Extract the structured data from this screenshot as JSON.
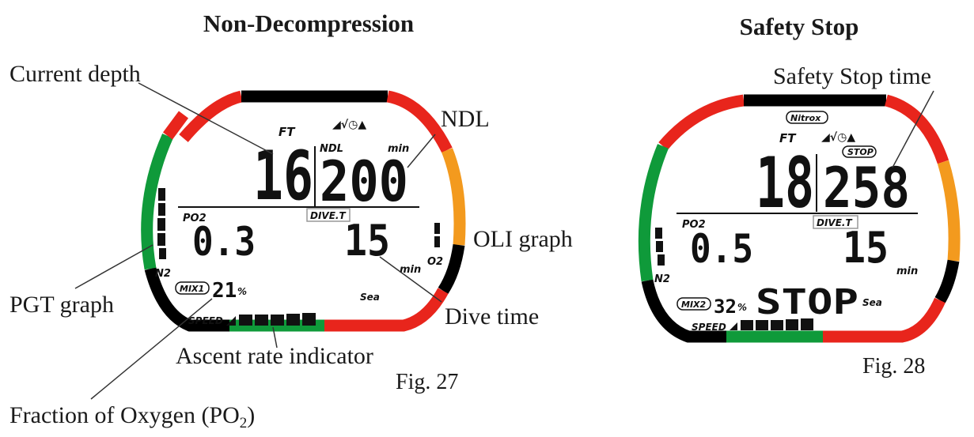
{
  "colors": {
    "red": "#e8251c",
    "green": "#0f9a3a",
    "orange": "#f39a1e",
    "black": "#000000"
  },
  "fig27": {
    "title": "Non-Decompression",
    "caption": "Fig. 27",
    "labels": {
      "current_depth": "Current depth",
      "ndl": "NDL",
      "oli_graph": "OLI graph",
      "pgt_graph": "PGT graph",
      "dive_time": "Dive time",
      "ascent_rate": "Ascent rate indicator",
      "fo2_main": "Fraction of Oxygen (PO",
      "fo2_sub": "2",
      "fo2_close": ")"
    },
    "display": {
      "depth_unit": "FT",
      "depth": "16",
      "ndl_label": "NDL",
      "ndl_unit": "min",
      "ndl": "200",
      "po2_label": "PO2",
      "po2": "0.3",
      "dive_t_label": "DIVE.T",
      "dive_time": "15",
      "dive_time_unit": "min",
      "n2_label": "N2",
      "o2_label": "O2",
      "mix_label": "MIX1",
      "mix_value": "21",
      "mix_unit": "%",
      "sea": "Sea",
      "speed": "SPEED"
    }
  },
  "fig28": {
    "title": "Safety Stop",
    "caption": "Fig. 28",
    "labels": {
      "safety_stop_time": "Safety Stop time"
    },
    "display": {
      "nitrox": "Nitrox",
      "depth_unit": "FT",
      "depth": "18",
      "stop_label": "STOP",
      "stop_time": "258",
      "po2_label": "PO2",
      "po2": "0.5",
      "dive_t_label": "DIVE.T",
      "dive_time": "15",
      "dive_time_unit": "min",
      "n2_label": "N2",
      "mix_label": "MIX2",
      "mix_value": "32",
      "mix_unit": "%",
      "stop_text": "STOP",
      "sea": "Sea",
      "speed": "SPEED"
    }
  }
}
